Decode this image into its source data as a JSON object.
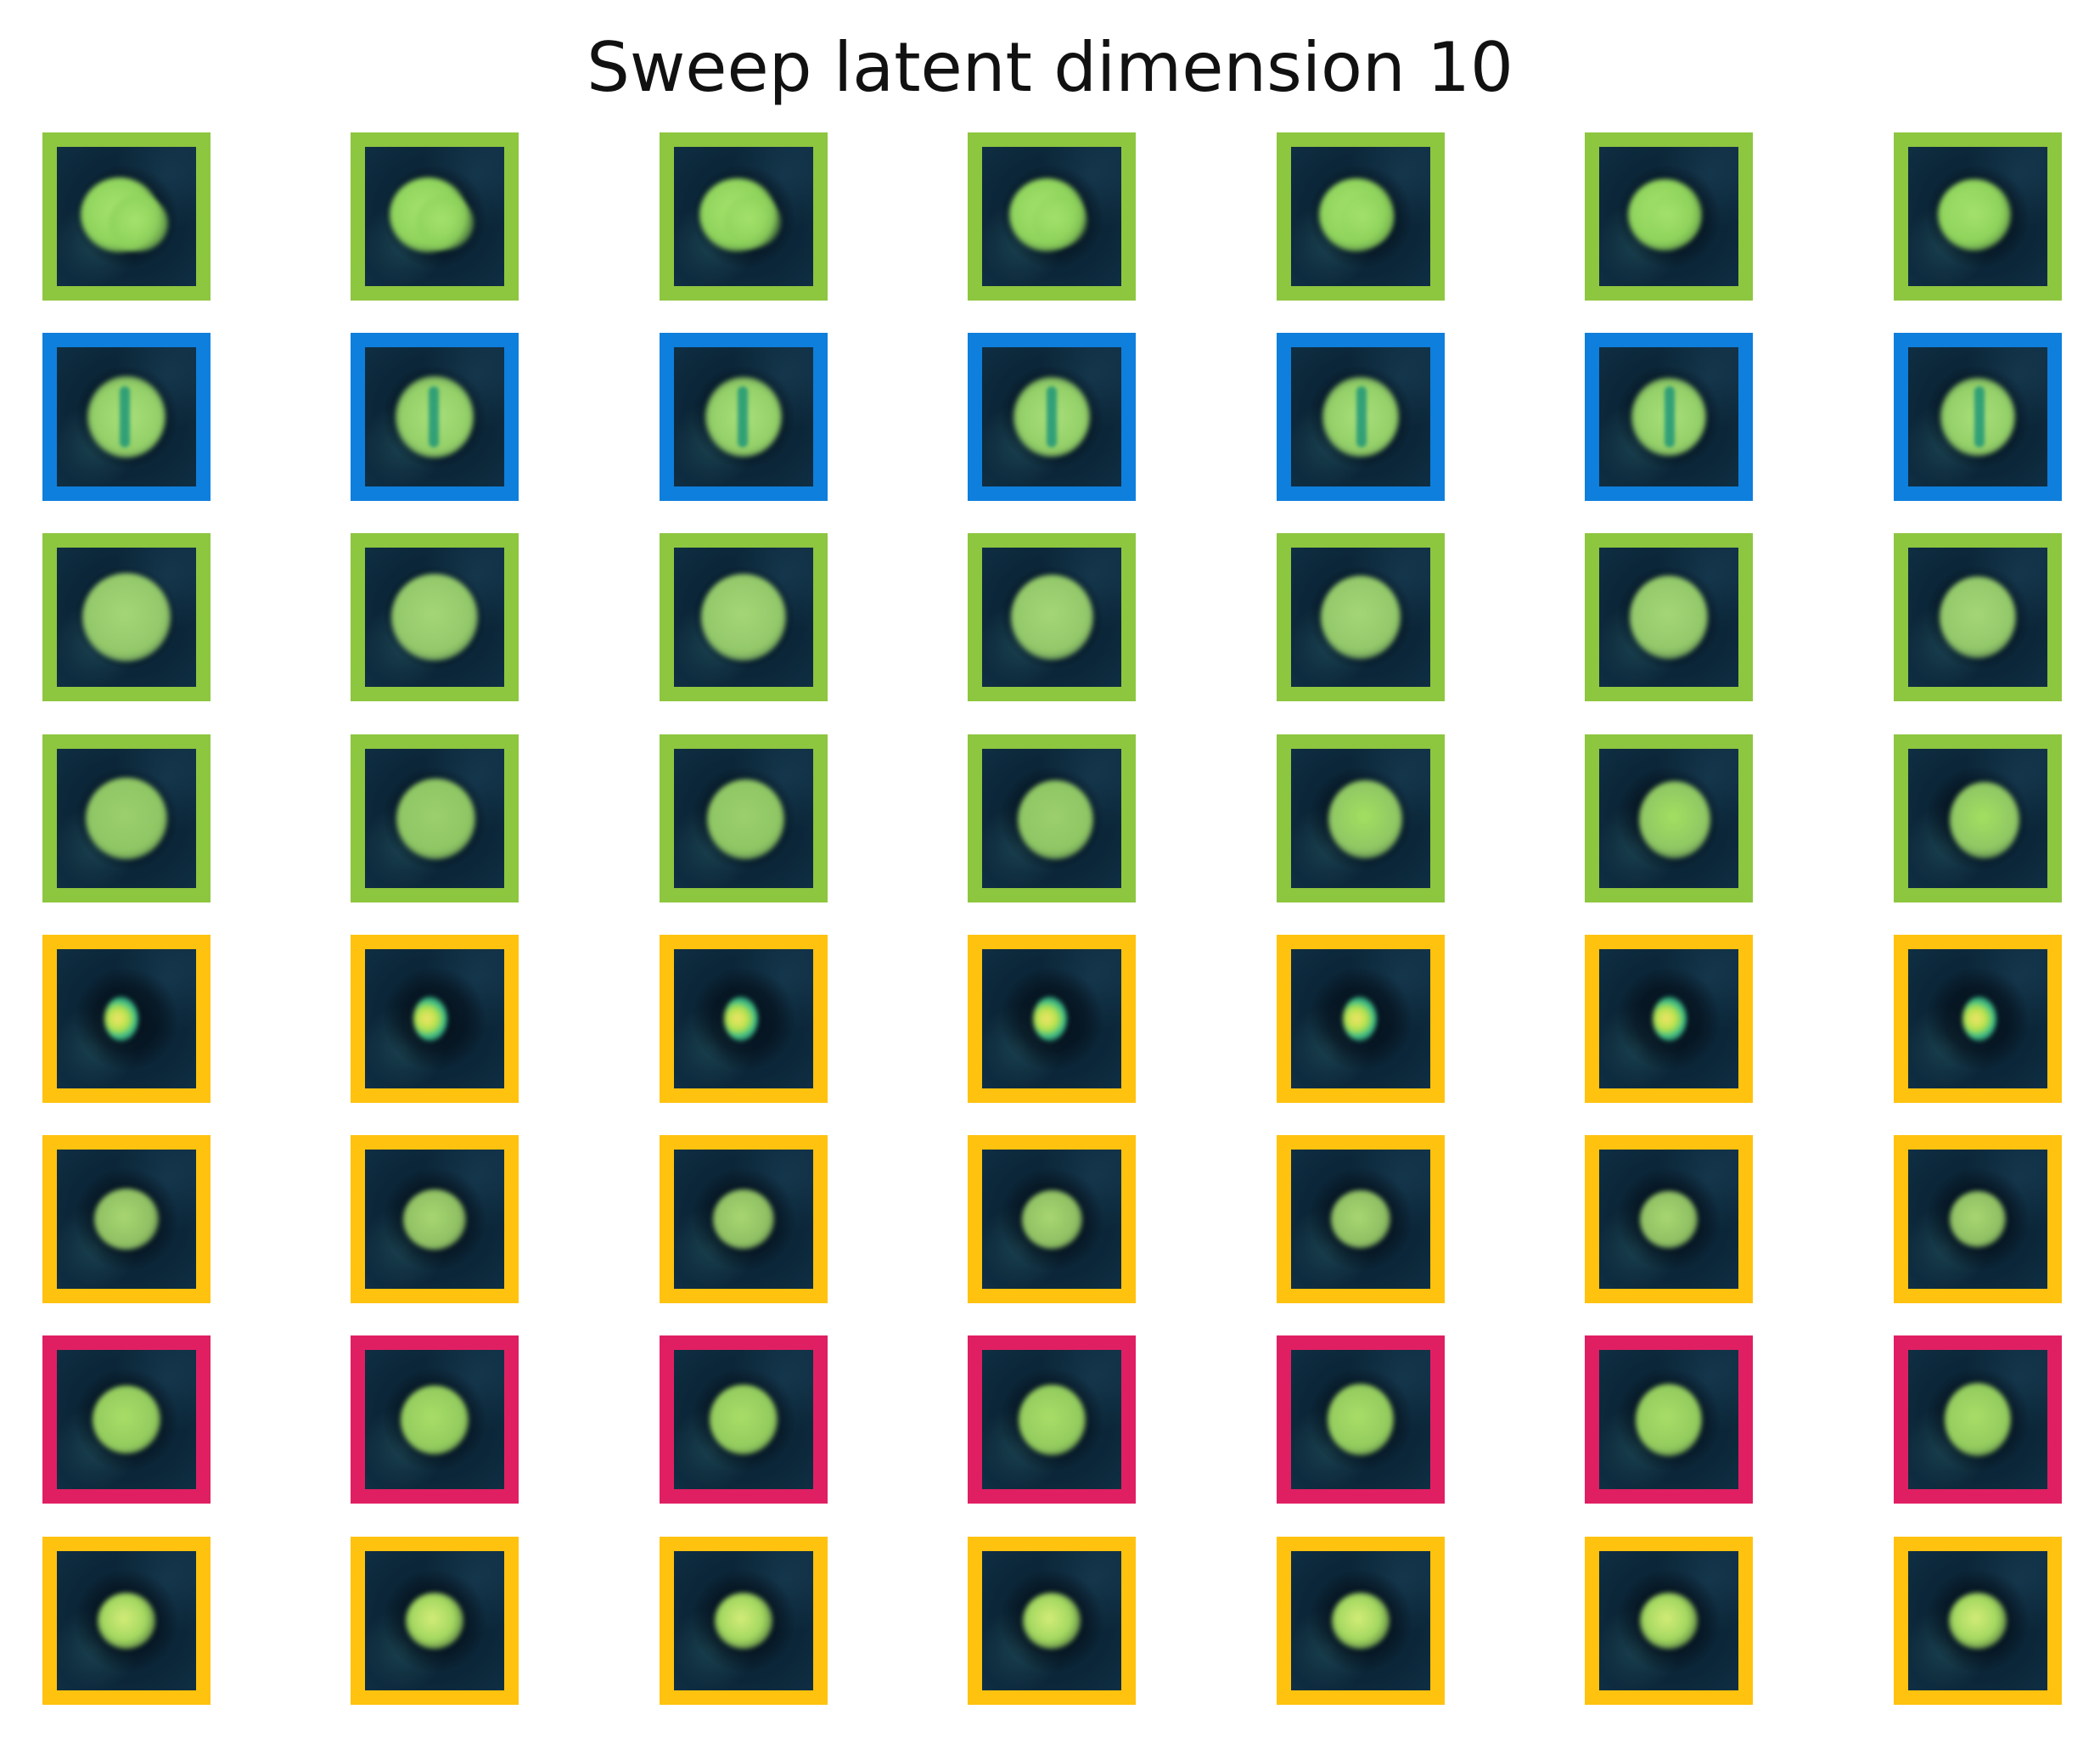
{
  "title": "Sweep latent dimension 10",
  "colors": {
    "green": "#8dc63f",
    "blue": "#0e7fdc",
    "yellow": "#ffc20e",
    "pink": "#e01f63"
  },
  "rows": [
    {
      "frame": "green",
      "style": "blob_dent"
    },
    {
      "frame": "blue",
      "style": "stripe"
    },
    {
      "frame": "green",
      "style": "disc_large"
    },
    {
      "frame": "green",
      "style": "disc_bright"
    },
    {
      "frame": "yellow",
      "style": "small_bright"
    },
    {
      "frame": "yellow",
      "style": "disc_soft"
    },
    {
      "frame": "pink",
      "style": "disc_medium"
    },
    {
      "frame": "yellow",
      "style": "disc_small"
    }
  ],
  "columns": 7
}
